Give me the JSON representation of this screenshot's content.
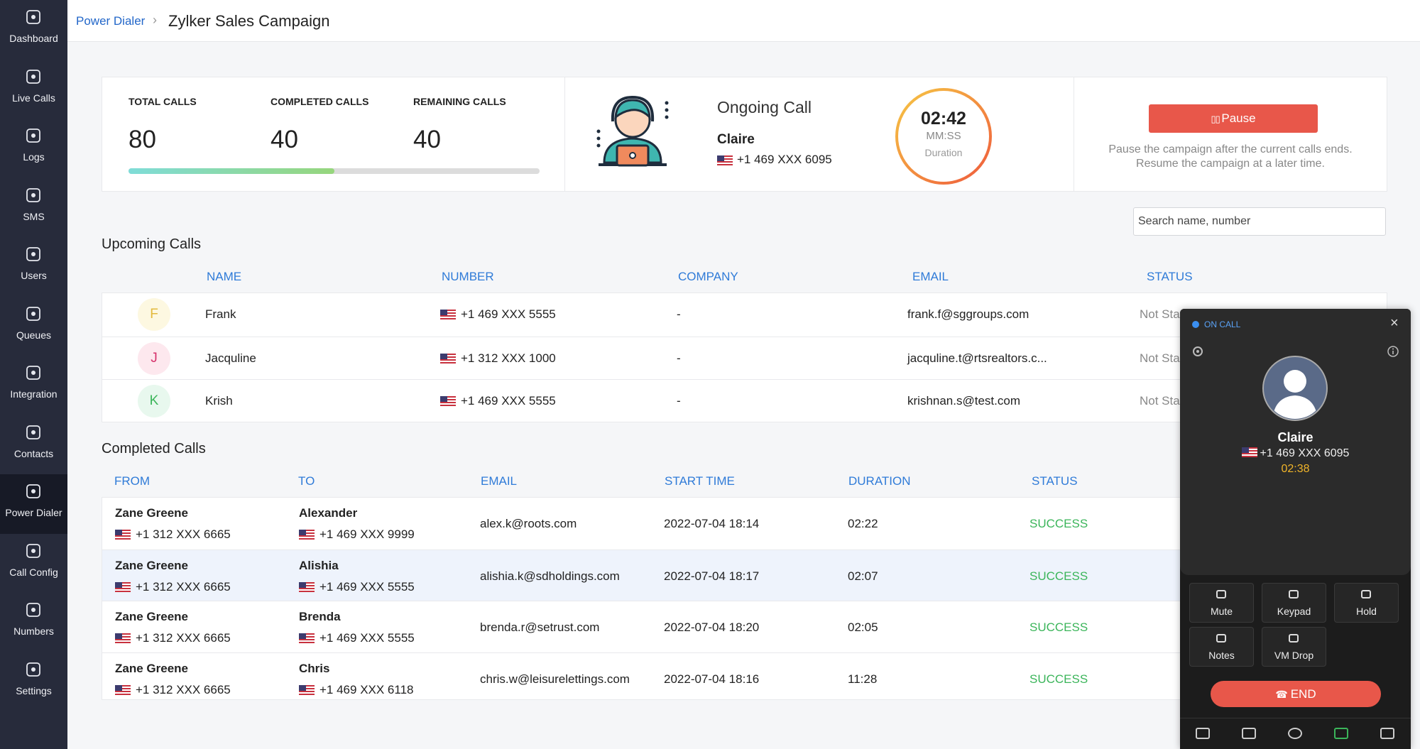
{
  "sidebar": {
    "items": [
      "Dashboard",
      "Live Calls",
      "Logs",
      "SMS",
      "Users",
      "Queues",
      "Integration",
      "Contacts",
      "Power Dialer",
      "Call Config",
      "Numbers",
      "Settings"
    ]
  },
  "header": {
    "parent": "Power Dialer",
    "title": "Zylker Sales Campaign"
  },
  "stats": {
    "items": [
      {
        "label": "TOTAL CALLS",
        "value": 80
      },
      {
        "label": "COMPLETED CALLS",
        "value": 40
      },
      {
        "label": "REMAINING CALLS",
        "value": 40
      }
    ]
  },
  "ongoing": {
    "title": "Ongoing Call",
    "name": "Claire",
    "number": "+1 469 XXX 6095",
    "timer": "02:42",
    "unit": "MM:SS",
    "caption": "Duration"
  },
  "pause": {
    "button": "Pause",
    "lines": [
      "Pause the campaign after the current calls ends.",
      "Resume the campaign at a later time."
    ]
  },
  "search": {
    "placeholder": "Search name, number"
  },
  "upcoming": {
    "title": "Upcoming Calls",
    "headers": [
      "NAME",
      "NUMBER",
      "COMPANY",
      "EMAIL",
      "STATUS"
    ],
    "rows": [
      {
        "initial": "F",
        "name": "Frank",
        "number": "+1 469 XXX 5555",
        "company": "-",
        "email": "frank.f@sggroups.com",
        "status": "Not Started"
      },
      {
        "initial": "J",
        "name": "Jacquline",
        "number": "+1 312 XXX 1000",
        "company": "-",
        "email": "jacquline.t@rtsrealtors.c...",
        "status": "Not Started"
      },
      {
        "initial": "K",
        "name": "Krish",
        "number": "+1 469 XXX 5555",
        "company": "-",
        "email": "krishnan.s@test.com",
        "status": "Not Started"
      }
    ]
  },
  "completed": {
    "title": "Completed Calls",
    "headers": [
      "FROM",
      "TO",
      "EMAIL",
      "START TIME",
      "DURATION",
      "STATUS"
    ],
    "rows": [
      {
        "from_name": "Zane Greene",
        "from_number": "+1 312 XXX 6665",
        "to_name": "Alexander",
        "to_number": "+1 469 XXX 9999",
        "email": "alex.k@roots.com",
        "start": "2022-07-04 18:14",
        "duration": "02:22",
        "status": "SUCCESS"
      },
      {
        "from_name": "Zane Greene",
        "from_number": "+1 312 XXX 6665",
        "to_name": "Alishia",
        "to_number": "+1 469 XXX 5555",
        "email": "alishia.k@sdholdings.com",
        "start": "2022-07-04 18:17",
        "duration": "02:07",
        "status": "SUCCESS"
      },
      {
        "from_name": "Zane Greene",
        "from_number": "+1 312 XXX 6665",
        "to_name": "Brenda",
        "to_number": "+1 469 XXX 5555",
        "email": "brenda.r@setrust.com",
        "start": "2022-07-04 18:20",
        "duration": "02:05",
        "status": "SUCCESS"
      },
      {
        "from_name": "Zane Greene",
        "from_number": "+1 312 XXX 6665",
        "to_name": "Chris",
        "to_number": "+1 469 XXX 6118",
        "email": "chris.w@leisurelettings.com",
        "start": "2022-07-04 18:16",
        "duration": "11:28",
        "status": "SUCCESS"
      }
    ]
  },
  "call_panel": {
    "status": "ON CALL",
    "name": "Claire",
    "number": "+1 469 XXX 6095",
    "timer": "02:38",
    "buttons": [
      "Mute",
      "Keypad",
      "Hold",
      "Notes",
      "VM Drop"
    ],
    "end": "END"
  }
}
